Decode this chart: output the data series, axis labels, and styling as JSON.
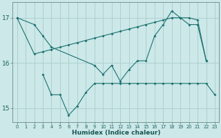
{
  "xlabel": "Humidex (Indice chaleur)",
  "bg_color": "#cce8e8",
  "grid_color": "#afd0d0",
  "line_color": "#1a7070",
  "xlim": [
    -0.5,
    23.5
  ],
  "ylim": [
    14.7,
    17.35
  ],
  "yticks": [
    15,
    16,
    17
  ],
  "xticks": [
    0,
    1,
    2,
    3,
    4,
    5,
    6,
    7,
    8,
    9,
    10,
    11,
    12,
    13,
    14,
    15,
    16,
    17,
    18,
    19,
    20,
    21,
    22,
    23
  ],
  "line1_x": [
    0,
    2,
    3,
    4,
    9,
    10,
    11,
    12,
    13,
    14,
    15,
    16,
    17,
    18,
    19,
    20,
    21,
    22
  ],
  "line1_y": [
    17.0,
    16.85,
    16.6,
    16.35,
    15.95,
    15.75,
    15.95,
    15.6,
    15.85,
    16.05,
    16.05,
    16.6,
    16.85,
    17.15,
    17.0,
    16.85,
    16.85,
    16.05
  ],
  "line2_x": [
    0,
    2,
    3,
    4,
    5,
    6,
    7,
    8,
    9,
    10,
    11,
    12,
    13,
    14,
    15,
    16,
    17,
    18,
    19,
    20,
    21,
    22
  ],
  "line2_y": [
    17.0,
    16.2,
    16.25,
    16.3,
    16.35,
    16.4,
    16.45,
    16.5,
    16.55,
    16.6,
    16.65,
    16.7,
    16.75,
    16.8,
    16.85,
    16.9,
    16.95,
    17.0,
    17.0,
    17.0,
    16.95,
    16.05
  ],
  "line3_x": [
    3,
    4,
    5,
    6,
    7,
    8,
    9,
    10,
    11,
    12,
    13,
    14,
    15,
    16,
    17,
    18,
    19,
    20,
    21,
    22,
    23
  ],
  "line3_y": [
    15.75,
    15.3,
    15.3,
    14.85,
    15.05,
    15.35,
    15.55,
    15.55,
    15.55,
    15.55,
    15.55,
    15.55,
    15.55,
    15.55,
    15.55,
    15.55,
    15.55,
    15.55,
    15.55,
    15.55,
    15.3
  ]
}
